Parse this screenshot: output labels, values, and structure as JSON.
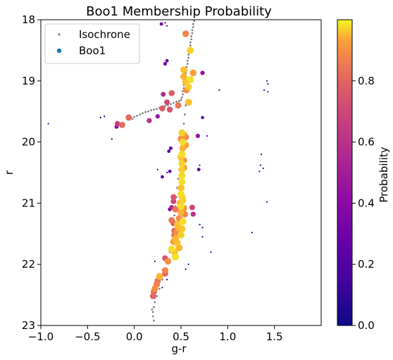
{
  "chart_data": {
    "type": "scatter",
    "title": "Boo1 Membership Probability",
    "xlabel": "g-r",
    "ylabel": "r",
    "xlim": [
      -1.0,
      2.0
    ],
    "ylim": [
      23,
      18
    ],
    "y_inverted": true,
    "xticks": [
      -1.0,
      -0.5,
      0.0,
      0.5,
      1.0,
      1.5
    ],
    "xtick_labels": [
      "−1.0",
      "−0.5",
      "0.0",
      "0.5",
      "1.0",
      "1.5"
    ],
    "yticks": [
      18,
      19,
      20,
      21,
      22,
      23
    ],
    "ytick_labels": [
      "18",
      "19",
      "20",
      "21",
      "22",
      "23"
    ],
    "grid": false,
    "legend_position": "top-left",
    "legend": [
      {
        "label": "Isochrone",
        "color": "#808080",
        "marker": "small-dot"
      },
      {
        "label": "Boo1",
        "color": "#1f77b4",
        "marker": "dot"
      }
    ],
    "colorbar": {
      "label": "Probability",
      "range": [
        0.0,
        1.0
      ],
      "ticks": [
        0.0,
        0.2,
        0.4,
        0.6,
        0.8
      ],
      "tick_labels": [
        "0.0",
        "0.2",
        "0.4",
        "0.6",
        "0.8"
      ],
      "colormap": "plasma",
      "colors": [
        "#0d0887",
        "#6a00a8",
        "#b12a90",
        "#e16462",
        "#fca636",
        "#f0f921"
      ]
    },
    "series": [
      {
        "name": "Isochrone",
        "color": "#808080",
        "points": [
          [
            0.64,
            18.02
          ],
          [
            0.63,
            18.07
          ],
          [
            0.63,
            18.12
          ],
          [
            0.62,
            18.17
          ],
          [
            0.62,
            18.22
          ],
          [
            0.61,
            18.27
          ],
          [
            0.61,
            18.32
          ],
          [
            0.6,
            18.37
          ],
          [
            0.6,
            18.42
          ],
          [
            0.59,
            18.47
          ],
          [
            0.59,
            18.52
          ],
          [
            0.58,
            18.57
          ],
          [
            0.58,
            18.62
          ],
          [
            0.57,
            18.67
          ],
          [
            0.57,
            18.72
          ],
          [
            0.56,
            18.77
          ],
          [
            0.56,
            18.82
          ],
          [
            0.55,
            18.87
          ],
          [
            0.55,
            18.92
          ],
          [
            0.54,
            18.97
          ],
          [
            0.54,
            19.02
          ],
          [
            0.53,
            19.07
          ],
          [
            0.53,
            19.12
          ],
          [
            0.52,
            19.17
          ],
          [
            0.52,
            19.22
          ],
          [
            0.51,
            19.27
          ],
          [
            0.5,
            19.31
          ],
          [
            0.48,
            19.33
          ],
          [
            0.45,
            19.34
          ],
          [
            0.42,
            19.36
          ],
          [
            0.39,
            19.38
          ],
          [
            0.36,
            19.4
          ],
          [
            0.33,
            19.41
          ],
          [
            0.3,
            19.43
          ],
          [
            0.27,
            19.44
          ],
          [
            0.24,
            19.46
          ],
          [
            0.21,
            19.47
          ],
          [
            0.18,
            19.48
          ],
          [
            0.15,
            19.5
          ],
          [
            0.12,
            19.51
          ],
          [
            0.09,
            19.53
          ],
          [
            0.06,
            19.55
          ],
          [
            0.03,
            19.57
          ],
          [
            0.0,
            19.59
          ],
          [
            -0.02,
            19.62
          ],
          [
            0.55,
            19.4
          ],
          [
            0.54,
            19.55
          ],
          [
            0.53,
            19.7
          ],
          [
            0.52,
            19.85
          ],
          [
            0.51,
            20.0
          ],
          [
            0.5,
            20.15
          ],
          [
            0.49,
            20.3
          ],
          [
            0.48,
            20.45
          ],
          [
            0.47,
            20.6
          ],
          [
            0.46,
            20.75
          ],
          [
            0.45,
            20.9
          ],
          [
            0.44,
            21.05
          ],
          [
            0.43,
            21.2
          ],
          [
            0.42,
            21.35
          ],
          [
            0.41,
            21.5
          ],
          [
            0.4,
            21.65
          ],
          [
            0.38,
            21.8
          ],
          [
            0.36,
            21.95
          ],
          [
            0.33,
            22.1
          ],
          [
            0.3,
            22.25
          ],
          [
            0.27,
            22.4
          ],
          [
            0.24,
            22.52
          ],
          [
            0.22,
            22.62
          ],
          [
            0.21,
            22.7
          ],
          [
            0.2,
            22.78
          ],
          [
            0.2,
            22.85
          ],
          [
            0.21,
            22.92
          ],
          [
            0.19,
            22.74
          ],
          [
            0.22,
            22.55
          ]
        ]
      },
      {
        "name": "Boo1",
        "points": [
          [
            0.29,
            18.07,
            0.25
          ],
          [
            0.55,
            18.23,
            0.88
          ],
          [
            0.35,
            18.67,
            0.25
          ],
          [
            0.33,
            18.72,
            0.3
          ],
          [
            0.6,
            18.5,
            0.97
          ],
          [
            0.53,
            18.82,
            0.96
          ],
          [
            0.63,
            18.87,
            0.93
          ],
          [
            0.73,
            18.87,
            0.45
          ],
          [
            0.53,
            18.93,
            0.95
          ],
          [
            0.6,
            18.98,
            0.98
          ],
          [
            0.55,
            19.02,
            0.96
          ],
          [
            0.58,
            19.1,
            0.97
          ],
          [
            0.56,
            19.15,
            0.9
          ],
          [
            0.4,
            19.2,
            0.78
          ],
          [
            0.31,
            19.22,
            0.55
          ],
          [
            0.35,
            19.35,
            0.7
          ],
          [
            0.58,
            19.35,
            0.96
          ],
          [
            0.47,
            19.4,
            0.85
          ],
          [
            0.3,
            19.45,
            0.78
          ],
          [
            0.38,
            19.47,
            0.75
          ],
          [
            0.73,
            19.6,
            0.2
          ],
          [
            0.25,
            19.58,
            0.45
          ],
          [
            -0.06,
            19.6,
            0.82
          ],
          [
            0.16,
            19.65,
            0.6
          ],
          [
            -0.13,
            19.72,
            0.82
          ],
          [
            -0.18,
            19.7,
            0.65
          ],
          [
            -0.19,
            19.75,
            0.4
          ],
          [
            0.51,
            19.85,
            0.97
          ],
          [
            0.53,
            19.88,
            0.92
          ],
          [
            0.55,
            19.92,
            0.88
          ],
          [
            0.5,
            19.95,
            0.9
          ],
          [
            0.68,
            19.9,
            0.45
          ],
          [
            0.52,
            20.0,
            0.98
          ],
          [
            0.55,
            20.05,
            0.93
          ],
          [
            0.52,
            20.1,
            0.95
          ],
          [
            0.51,
            20.2,
            0.98
          ],
          [
            0.5,
            20.25,
            0.96
          ],
          [
            0.53,
            20.3,
            0.9
          ],
          [
            0.51,
            20.35,
            0.97
          ],
          [
            0.51,
            20.45,
            0.97
          ],
          [
            0.39,
            20.1,
            0.3
          ],
          [
            0.37,
            20.15,
            0.25
          ],
          [
            0.53,
            20.42,
            0.93
          ],
          [
            0.69,
            20.45,
            0.28
          ],
          [
            0.38,
            20.48,
            0.25
          ],
          [
            0.3,
            20.57,
            0.25
          ],
          [
            0.51,
            20.55,
            0.98
          ],
          [
            0.51,
            20.65,
            0.98
          ],
          [
            0.5,
            20.75,
            0.96
          ],
          [
            0.5,
            20.85,
            0.98
          ],
          [
            0.51,
            20.9,
            0.96
          ],
          [
            0.52,
            20.95,
            0.97
          ],
          [
            0.42,
            20.9,
            0.75
          ],
          [
            0.42,
            20.97,
            0.7
          ],
          [
            0.49,
            21.0,
            0.95
          ],
          [
            0.5,
            21.05,
            0.98
          ],
          [
            0.53,
            21.08,
            0.92
          ],
          [
            0.4,
            21.07,
            0.55
          ],
          [
            0.44,
            21.1,
            0.85
          ],
          [
            0.38,
            21.1,
            0.35
          ],
          [
            0.5,
            21.15,
            0.95
          ],
          [
            0.54,
            21.18,
            0.88
          ],
          [
            0.62,
            21.07,
            0.7
          ],
          [
            0.63,
            21.18,
            0.6
          ],
          [
            0.48,
            21.25,
            0.9
          ],
          [
            0.4,
            21.28,
            0.85
          ],
          [
            0.42,
            21.33,
            0.75
          ],
          [
            0.46,
            21.35,
            0.96
          ],
          [
            0.47,
            21.4,
            0.95
          ],
          [
            0.43,
            21.45,
            0.8
          ],
          [
            0.52,
            21.3,
            0.98
          ],
          [
            0.51,
            21.42,
            0.96
          ],
          [
            0.45,
            21.48,
            0.9
          ],
          [
            0.43,
            21.53,
            0.82
          ],
          [
            0.44,
            21.58,
            0.95
          ],
          [
            0.42,
            21.63,
            0.93
          ],
          [
            0.5,
            21.52,
            0.97
          ],
          [
            0.46,
            21.65,
            0.96
          ],
          [
            0.48,
            21.73,
            0.95
          ],
          [
            0.4,
            21.75,
            0.98
          ],
          [
            0.43,
            21.8,
            0.96
          ],
          [
            0.44,
            21.88,
            0.98
          ],
          [
            0.33,
            21.9,
            0.75
          ],
          [
            0.36,
            21.95,
            0.9
          ],
          [
            0.33,
            22.1,
            0.88
          ],
          [
            0.33,
            22.15,
            0.8
          ],
          [
            0.27,
            22.2,
            0.95
          ],
          [
            0.25,
            22.27,
            0.85
          ],
          [
            0.24,
            22.33,
            0.88
          ],
          [
            0.22,
            22.4,
            0.9
          ],
          [
            0.21,
            22.45,
            0.82
          ],
          [
            0.2,
            22.52,
            0.8
          ],
          [
            0.3,
            22.38,
            0.05
          ],
          [
            0.58,
            22.0,
            0.05
          ],
          [
            0.55,
            22.08,
            0.05
          ],
          [
            0.22,
            21.95,
            0.05
          ],
          [
            0.35,
            22.25,
            0.05
          ],
          [
            0.73,
            21.4,
            0.05
          ],
          [
            0.7,
            21.35,
            0.05
          ],
          [
            0.73,
            21.55,
            0.05
          ],
          [
            0.25,
            20.45,
            0.05
          ],
          [
            0.7,
            20.38,
            0.05
          ],
          [
            0.78,
            19.9,
            0.05
          ],
          [
            0.91,
            19.15,
            0.05
          ],
          [
            1.42,
            19.0,
            0.05
          ],
          [
            1.43,
            19.05,
            0.05
          ],
          [
            1.39,
            19.15,
            0.05
          ],
          [
            1.43,
            19.18,
            0.05
          ],
          [
            1.36,
            20.2,
            0.05
          ],
          [
            1.35,
            20.38,
            0.05
          ],
          [
            1.38,
            20.43,
            0.05
          ],
          [
            1.34,
            20.48,
            0.05
          ],
          [
            1.42,
            20.98,
            0.05
          ],
          [
            1.26,
            21.48,
            0.05
          ],
          [
            -0.92,
            19.7,
            0.05
          ],
          [
            -0.36,
            19.6,
            0.05
          ],
          [
            -0.32,
            19.58,
            0.05
          ],
          [
            -0.24,
            19.95,
            0.05
          ],
          [
            0.35,
            18.1,
            0.05
          ],
          [
            0.33,
            18.05,
            0.05
          ],
          [
            0.82,
            21.8,
            0.05
          ],
          [
            0.35,
            20.5,
            0.05
          ]
        ]
      }
    ]
  }
}
